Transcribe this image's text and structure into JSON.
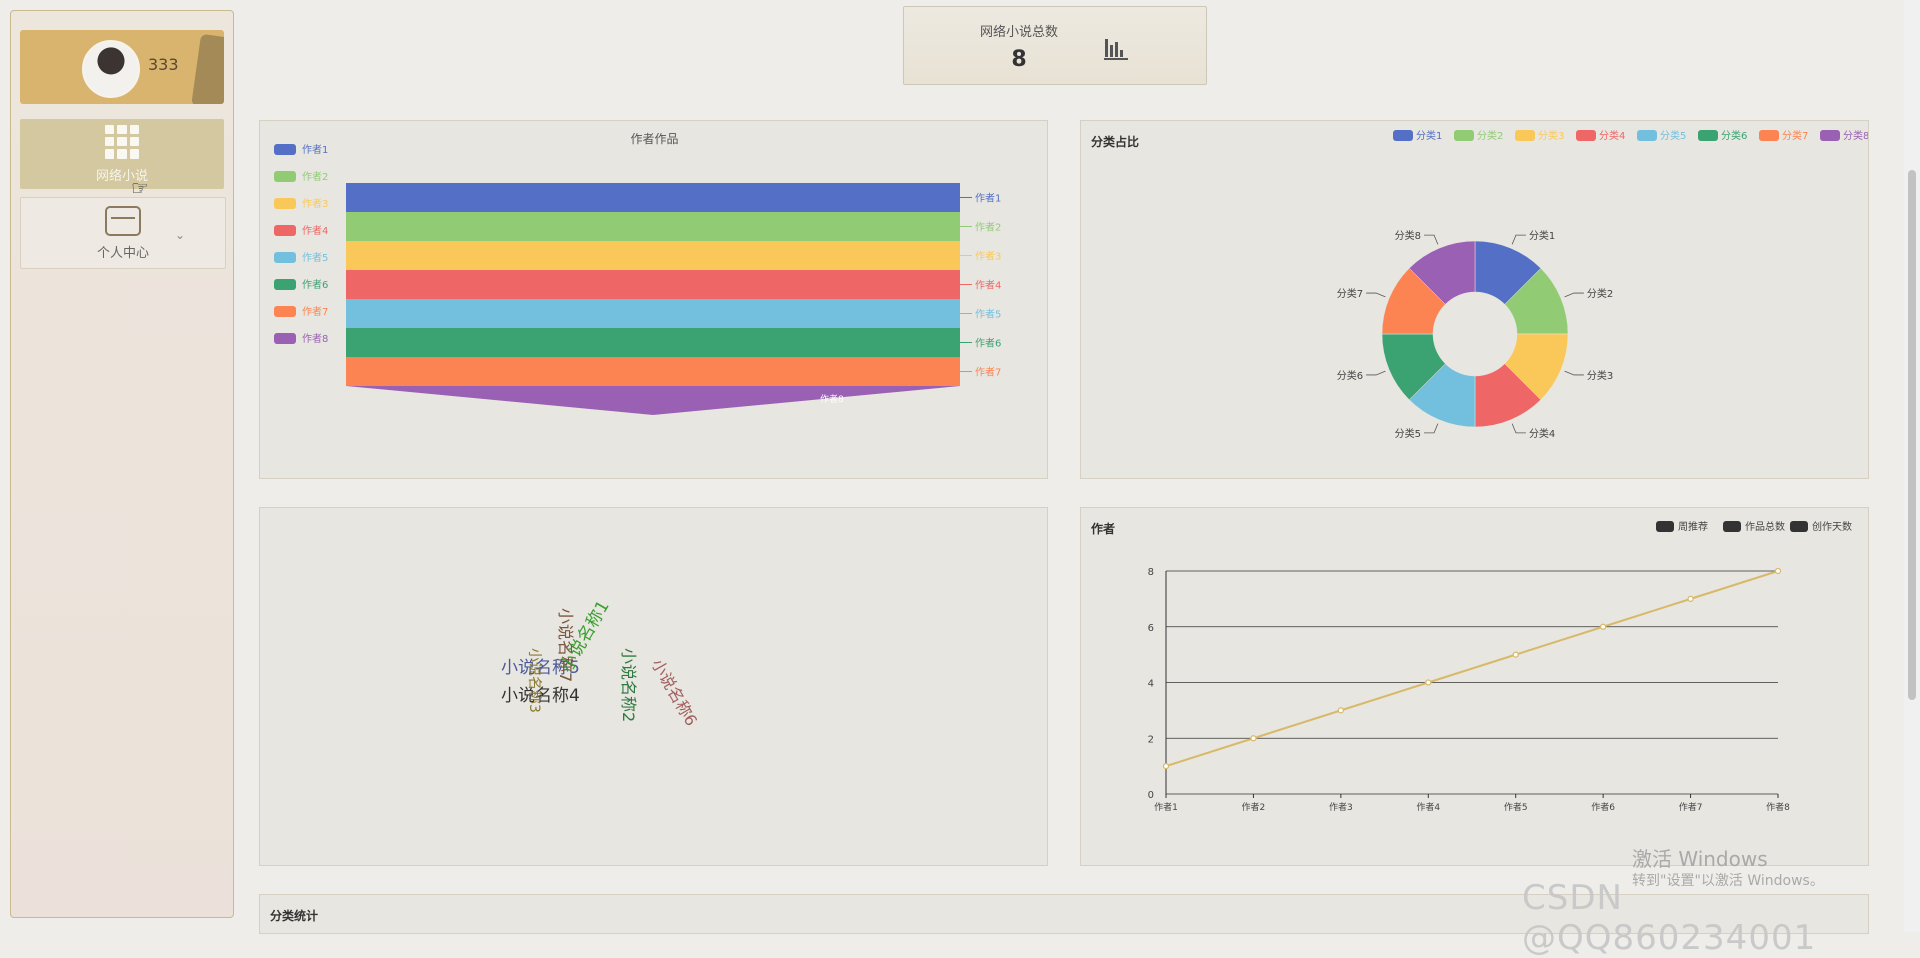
{
  "user": {
    "name": "333"
  },
  "nav": {
    "novel_label": "网络小说",
    "center_label": "个人中心"
  },
  "stat": {
    "label": "网络小说总数",
    "value": "8"
  },
  "funnel": {
    "title": "作者作品",
    "legend": [
      "作者1",
      "作者2",
      "作者3",
      "作者4",
      "作者5",
      "作者6",
      "作者7",
      "作者8"
    ],
    "colors": [
      "#5470c6",
      "#91cc75",
      "#fac858",
      "#ee6666",
      "#73c0de",
      "#3ba272",
      "#fc8452",
      "#9a60b4"
    ]
  },
  "pie": {
    "title": "分类占比",
    "legend": [
      "分类1",
      "分类2",
      "分类3",
      "分类4",
      "分类5",
      "分类6",
      "分类7",
      "分类8"
    ],
    "colors": [
      "#5470c6",
      "#91cc75",
      "#fac858",
      "#ee6666",
      "#73c0de",
      "#3ba272",
      "#fc8452",
      "#9a60b4"
    ]
  },
  "wordcloud": {
    "words": [
      "小说名称5",
      "小说名称4",
      "小说名称3",
      "小说名称7",
      "小说名称1",
      "小说名称2",
      "小说名称6"
    ]
  },
  "line": {
    "title": "作者",
    "legend": [
      "周推荐",
      "作品总数",
      "创作天数"
    ]
  },
  "bottom_panel": {
    "title": "分类统计"
  },
  "chart_data": [
    {
      "type": "funnel",
      "title": "作者作品",
      "categories": [
        "作者1",
        "作者2",
        "作者3",
        "作者4",
        "作者5",
        "作者6",
        "作者7",
        "作者8"
      ],
      "values": [
        1,
        1,
        1,
        1,
        1,
        1,
        1,
        1
      ]
    },
    {
      "type": "pie",
      "title": "分类占比",
      "categories": [
        "分类1",
        "分类2",
        "分类3",
        "分类4",
        "分类5",
        "分类6",
        "分类7",
        "分类8"
      ],
      "values": [
        1,
        1,
        1,
        1,
        1,
        1,
        1,
        1
      ]
    },
    {
      "type": "line",
      "title": "作者",
      "categories": [
        "作者1",
        "作者2",
        "作者3",
        "作者4",
        "作者5",
        "作者6",
        "作者7",
        "作者8"
      ],
      "y_ticks": [
        "0",
        "2",
        "4",
        "6",
        "8"
      ],
      "ylim": [
        0,
        8
      ],
      "series": [
        {
          "name": "周推荐",
          "values": [
            1,
            2,
            3,
            4,
            5,
            6,
            7,
            8
          ]
        }
      ]
    }
  ],
  "watermark": {
    "activate_title": "激活 Windows",
    "activate_hint": "转到\"设置\"以激活 Windows。",
    "csdn": "CSDN @QQ860234001"
  }
}
